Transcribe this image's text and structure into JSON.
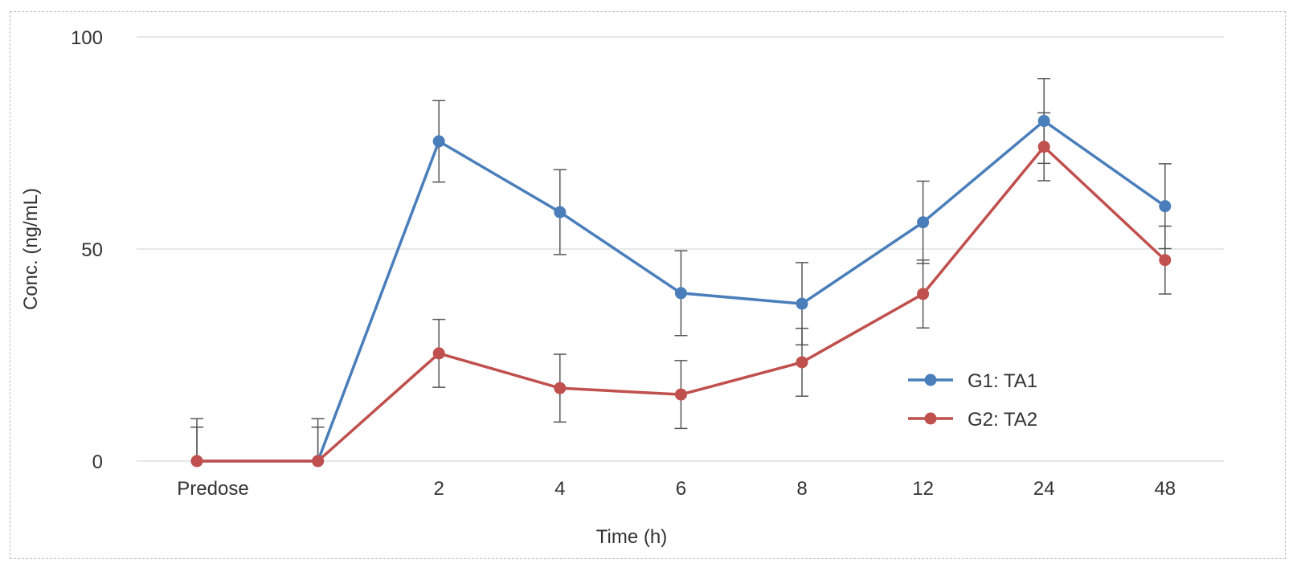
{
  "chart_data": {
    "type": "line",
    "title": "",
    "xlabel": "Time (h)",
    "ylabel": "Conc. (ng/mL)",
    "categories": [
      "Predose",
      "",
      "2",
      "4",
      "6",
      "8",
      "12",
      "24",
      "48"
    ],
    "ylim": [
      0,
      100
    ],
    "yticks": [
      0,
      50,
      100
    ],
    "grid": "horizontal",
    "legend": "bottom-right",
    "error_bars": true,
    "series": [
      {
        "name": "G1: TA1",
        "color": "#4a7ebb",
        "values": [
          0,
          0,
          75.4,
          58.7,
          39.6,
          37.1,
          56.3,
          80.2,
          60.1
        ],
        "errors": [
          10,
          10,
          9.6,
          10,
          10,
          9.7,
          9.7,
          10,
          10
        ]
      },
      {
        "name": "G2: TA2",
        "color": "#c0504d",
        "values": [
          0,
          0,
          25.4,
          17.2,
          15.7,
          23.3,
          39.4,
          74.1,
          47.4
        ],
        "errors": [
          8,
          8,
          8,
          8,
          8,
          8,
          8,
          8,
          8
        ]
      }
    ]
  }
}
